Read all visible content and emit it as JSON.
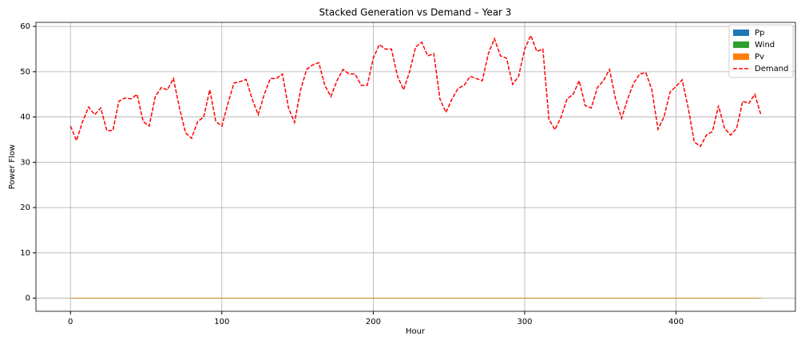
{
  "chart_data": {
    "type": "stacked_area_line",
    "title": "Stacked Generation vs Demand – Year 3",
    "xlabel": "Hour",
    "ylabel": "Power Flow",
    "x": [
      0,
      4,
      8,
      12,
      16,
      20,
      24,
      28,
      32,
      36,
      40,
      44,
      48,
      52,
      56,
      60,
      64,
      68,
      72,
      76,
      80,
      84,
      88,
      92,
      96,
      100,
      104,
      108,
      112,
      116,
      120,
      124,
      128,
      132,
      136,
      140,
      144,
      148,
      152,
      156,
      160,
      164,
      168,
      172,
      176,
      180,
      184,
      188,
      192,
      196,
      200,
      204,
      208,
      212,
      216,
      220,
      224,
      228,
      232,
      236,
      240,
      244,
      248,
      252,
      256,
      260,
      264,
      268,
      272,
      276,
      280,
      284,
      288,
      292,
      296,
      300,
      304,
      308,
      312,
      316,
      320,
      324,
      328,
      332,
      336,
      340,
      344,
      348,
      352,
      356,
      360,
      364,
      368,
      372,
      376,
      380,
      384,
      388,
      392,
      396,
      400,
      404,
      408,
      412,
      416,
      420,
      424,
      428,
      432,
      436,
      440,
      444,
      448,
      452,
      456
    ],
    "series": [
      {
        "name": "Pp",
        "color": "#1f77b4",
        "kind": "area",
        "values": [
          0,
          0,
          0,
          0,
          0,
          0,
          0,
          0,
          0,
          0,
          0,
          0,
          0,
          0,
          0,
          0,
          0,
          0,
          0,
          0,
          0,
          0,
          0,
          0,
          0,
          0,
          0,
          0,
          0,
          0,
          0,
          0,
          0,
          0,
          0,
          0,
          0,
          0,
          0,
          0,
          0,
          0,
          0,
          0,
          0,
          0,
          0,
          0,
          0,
          0,
          0,
          0,
          0,
          0,
          0,
          0,
          0,
          0,
          0,
          0,
          0,
          0,
          0,
          0,
          0,
          0,
          0,
          0,
          0,
          0,
          0,
          0,
          0,
          0,
          0,
          0,
          0,
          0,
          0,
          0,
          0,
          0,
          0,
          0,
          0,
          0,
          0,
          0,
          0,
          0,
          0,
          0,
          0,
          0,
          0,
          0,
          0,
          0,
          0,
          0,
          0,
          0,
          0,
          0,
          0,
          0,
          0,
          0,
          0,
          0,
          0,
          0,
          0,
          0,
          0
        ]
      },
      {
        "name": "Wind",
        "color": "#2ca02c",
        "kind": "area",
        "values": [
          0,
          0,
          0,
          0,
          0,
          0,
          0,
          0,
          0,
          0,
          0,
          0,
          0,
          0,
          0,
          0,
          0,
          0,
          0,
          0,
          0,
          0,
          0,
          0,
          0,
          0,
          0,
          0,
          0,
          0,
          0,
          0,
          0,
          0,
          0,
          0,
          0,
          0,
          0,
          0,
          0,
          0,
          0,
          0,
          0,
          0,
          0,
          0,
          0,
          0,
          0,
          0,
          0,
          0,
          0,
          0,
          0,
          0,
          0,
          0,
          0,
          0,
          0,
          0,
          0,
          0,
          0,
          0,
          0,
          0,
          0,
          0,
          0,
          0,
          0,
          0,
          0,
          0,
          0,
          0,
          0,
          0,
          0,
          0,
          0,
          0,
          0,
          0,
          0,
          0,
          0,
          0,
          0,
          0,
          0,
          0,
          0,
          0,
          0,
          0,
          0,
          0,
          0,
          0,
          0,
          0,
          0,
          0,
          0,
          0,
          0,
          0,
          0,
          0,
          0
        ]
      },
      {
        "name": "Pv",
        "color": "#ff7f0e",
        "kind": "area",
        "values": [
          0,
          0,
          0,
          0,
          0,
          0,
          0,
          0,
          0,
          0,
          0,
          0,
          0,
          0,
          0,
          0,
          0,
          0,
          0,
          0,
          0,
          0,
          0,
          0,
          0,
          0,
          0,
          0,
          0,
          0,
          0,
          0,
          0,
          0,
          0,
          0,
          0,
          0,
          0,
          0,
          0,
          0,
          0,
          0,
          0,
          0,
          0,
          0,
          0,
          0,
          0,
          0,
          0,
          0,
          0,
          0,
          0,
          0,
          0,
          0,
          0,
          0,
          0,
          0,
          0,
          0,
          0,
          0,
          0,
          0,
          0,
          0,
          0,
          0,
          0,
          0,
          0,
          0,
          0,
          0,
          0,
          0,
          0,
          0,
          0,
          0,
          0,
          0,
          0,
          0,
          0,
          0,
          0,
          0,
          0,
          0,
          0,
          0,
          0,
          0,
          0,
          0,
          0,
          0,
          0,
          0,
          0,
          0,
          0,
          0,
          0,
          0,
          0,
          0,
          0
        ]
      },
      {
        "name": "Demand",
        "color": "#ff0000",
        "kind": "dashed_line",
        "values": [
          38,
          34.8,
          39,
          42.2,
          40.5,
          42,
          37,
          37,
          43.5,
          44.2,
          44,
          45,
          39,
          38,
          44.5,
          46.5,
          46,
          48.5,
          42,
          36.5,
          35.3,
          39,
          40,
          46,
          39,
          38,
          43,
          47.5,
          47.8,
          48.3,
          44,
          40.5,
          45,
          48.5,
          48.5,
          49.5,
          42,
          38.8,
          46,
          50.5,
          51.5,
          52,
          47,
          44.5,
          48,
          50.5,
          49.5,
          49.5,
          47,
          47,
          53,
          56,
          55,
          55,
          49,
          46,
          50,
          55.5,
          56.5,
          53.5,
          54,
          44,
          41,
          44,
          46.3,
          47,
          49,
          48.5,
          48,
          54,
          57.3,
          53.5,
          53,
          47.2,
          49,
          55,
          58,
          54.5,
          55,
          39.5,
          37.2,
          40,
          44,
          45,
          48,
          42.5,
          42,
          46.5,
          48,
          50.5,
          44,
          39.7,
          44,
          47.5,
          49.5,
          49.8,
          46,
          37.3,
          40,
          45.5,
          46.8,
          48.2,
          42,
          34.5,
          33.5,
          36,
          36.8,
          42.5,
          37.5,
          36,
          37.5,
          43.5,
          43,
          45,
          40.5
        ]
      }
    ],
    "xlim": [
      -22.8,
      478.8
    ],
    "ylim": [
      -2.9,
      60.9
    ],
    "xticks": [
      0,
      100,
      200,
      300,
      400
    ],
    "yticks": [
      0,
      10,
      20,
      30,
      40,
      50,
      60
    ],
    "grid": true,
    "legend": "upper right"
  }
}
